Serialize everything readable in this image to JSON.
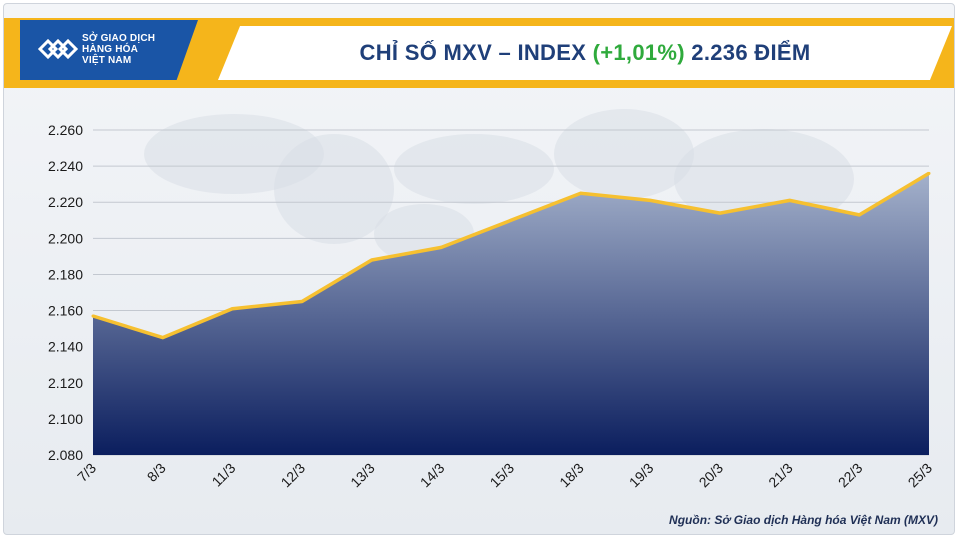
{
  "logo": {
    "line1": "SỞ GIAO DỊCH",
    "line2": "HÀNG HÓA",
    "line3": "VIỆT NAM"
  },
  "title": {
    "prefix": "CHỈ SỐ MXV – INDEX ",
    "change": "(+1,01%)",
    "suffix": " 2.236 ĐIỂM"
  },
  "source": "Nguồn: Sở Giao dịch Hàng hóa Việt Nam (MXV)",
  "colors": {
    "accent": "#f5b51b",
    "title": "#1f3f79",
    "change": "#2faa3c",
    "line": "#f6c030",
    "area_top": "#a4b1cb",
    "area_bottom": "#0b1e5e"
  },
  "chart_data": {
    "type": "area",
    "title": "CHỈ SỐ MXV – INDEX (+1,01%) 2.236 ĐIỂM",
    "categories": [
      "7/3",
      "8/3",
      "11/3",
      "12/3",
      "13/3",
      "14/3",
      "15/3",
      "18/3",
      "19/3",
      "20/3",
      "21/3",
      "22/3",
      "25/3"
    ],
    "values": [
      2157,
      2145,
      2161,
      2165,
      2188,
      2195,
      2210,
      2225,
      2221,
      2214,
      2221,
      2213,
      2236
    ],
    "ylim": [
      2080,
      2260
    ],
    "yticks": [
      2080,
      2100,
      2120,
      2140,
      2160,
      2180,
      2200,
      2220,
      2240,
      2260
    ],
    "ytick_labels": [
      "2.080",
      "2.100",
      "2.120",
      "2.140",
      "2.160",
      "2.180",
      "2.200",
      "2.220",
      "2.240",
      "2.260"
    ],
    "grid": true,
    "xlabel": "",
    "ylabel": ""
  }
}
